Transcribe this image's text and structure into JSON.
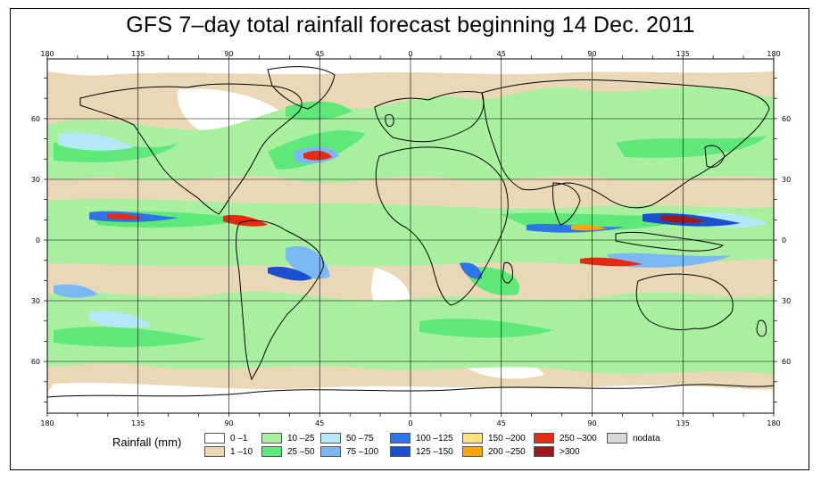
{
  "title": "GFS 7–day total rainfall forecast beginning 14 Dec. 2011",
  "axes": {
    "lon_ticks": [
      "180",
      "135",
      "90",
      "45",
      "0",
      "45",
      "90",
      "135",
      "180"
    ],
    "lat_ticks": [
      "60",
      "30",
      "0",
      "30",
      "60"
    ]
  },
  "legend": {
    "title": "Rainfall (mm)",
    "items": [
      {
        "label": "0 –1",
        "color": "#ffffff"
      },
      {
        "label": "1 –10",
        "color": "#ead7b5"
      },
      {
        "label": "10 –25",
        "color": "#a8f0a0"
      },
      {
        "label": "25 –50",
        "color": "#5fe87a"
      },
      {
        "label": "50 –75",
        "color": "#b4e8f8"
      },
      {
        "label": "75 –100",
        "color": "#79b8f4"
      },
      {
        "label": "100 –125",
        "color": "#2c74e8"
      },
      {
        "label": "125 –150",
        "color": "#1a4fd0"
      },
      {
        "label": "150 –200",
        "color": "#ffe07a"
      },
      {
        "label": "200 –250",
        "color": "#ffa500"
      },
      {
        "label": "250 –300",
        "color": "#e82a10"
      },
      {
        "label": ">300",
        "color": "#a01818"
      },
      {
        "label": "nodata",
        "color": "#d8d8d8"
      }
    ]
  },
  "colors": {
    "ocean_base": "#ead7b5",
    "land": "#ffffff",
    "coast": "#000000",
    "grid": "#000000"
  }
}
